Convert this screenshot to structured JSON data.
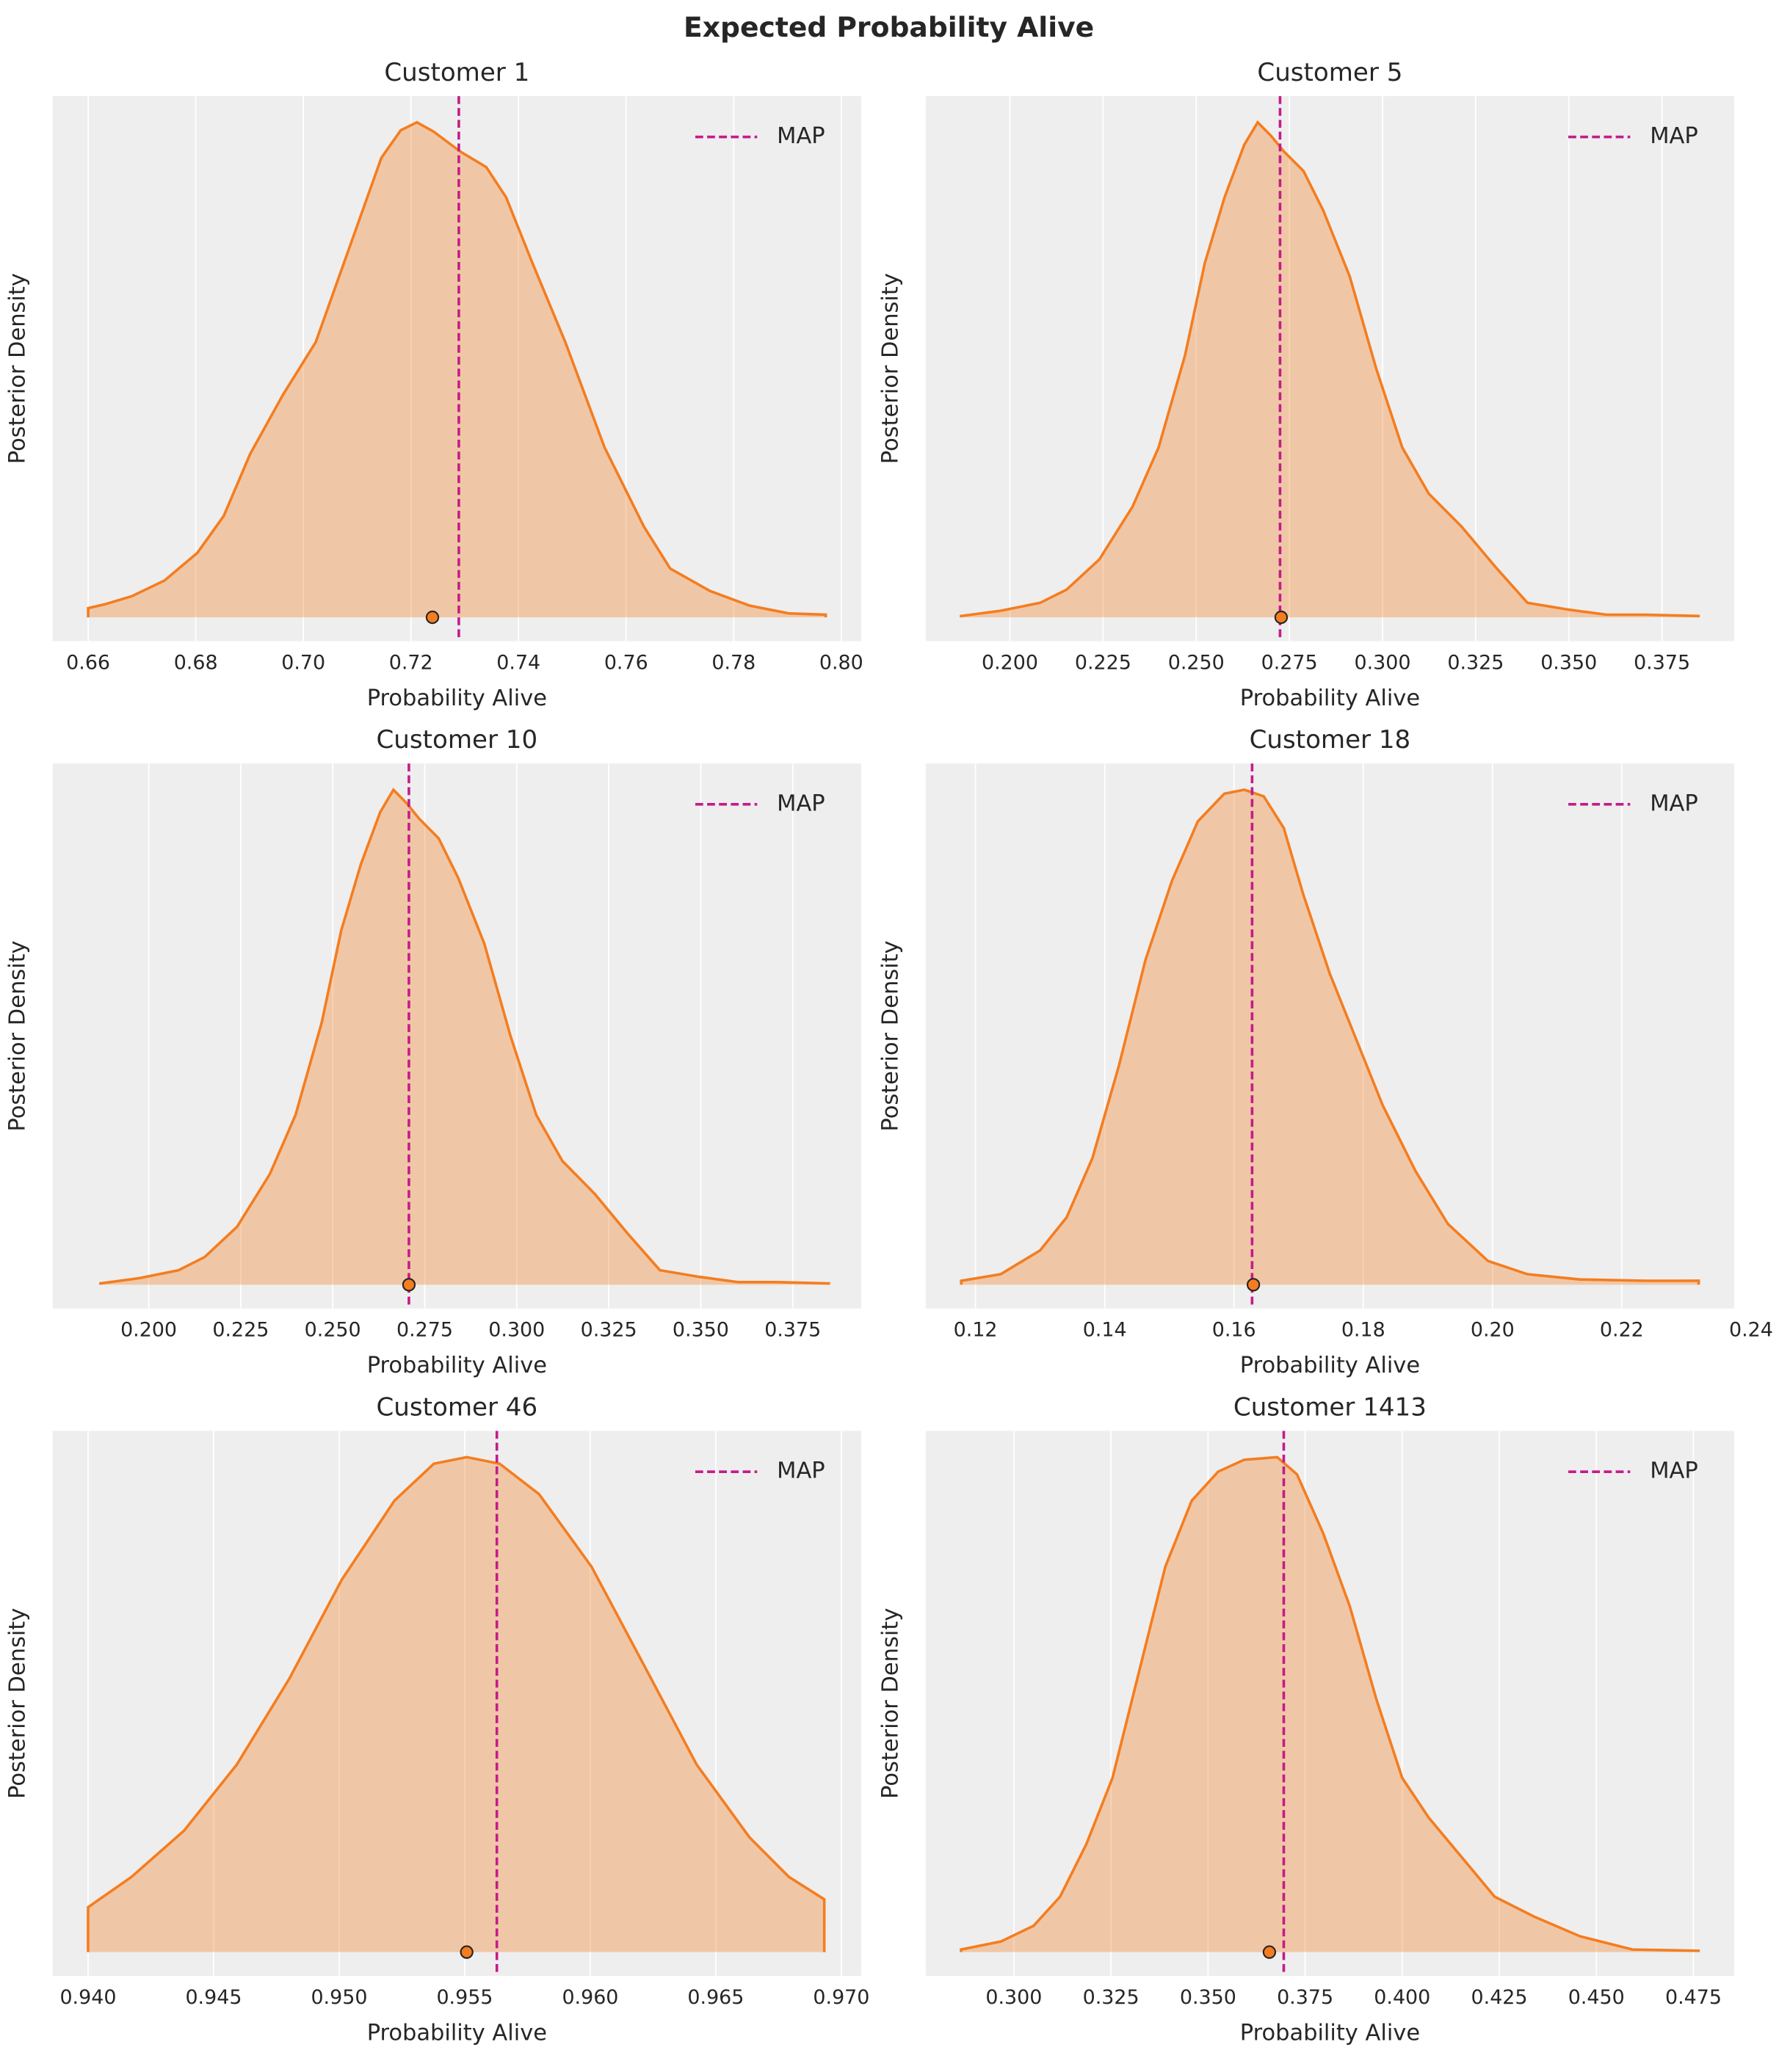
{
  "title": "Expected Probability Alive",
  "chart_data": [
    {
      "type": "density",
      "title": "Customer 1",
      "xlabel": "Probability Alive",
      "ylabel": "Posterior Density",
      "color": "#f47d20",
      "x": [
        0.66,
        0.6632,
        0.6681,
        0.6742,
        0.6803,
        0.6852,
        0.6901,
        0.6962,
        0.7023,
        0.7084,
        0.7145,
        0.7181,
        0.7211,
        0.7242,
        0.7291,
        0.734,
        0.7377,
        0.7426,
        0.7487,
        0.756,
        0.7633,
        0.7682,
        0.7756,
        0.7829,
        0.7902,
        0.7971
      ],
      "values": [
        0.0186,
        0.0266,
        0.0426,
        0.0745,
        0.1303,
        0.2048,
        0.3298,
        0.4495,
        0.5559,
        0.742,
        0.9282,
        0.984,
        1.0,
        0.9814,
        0.9415,
        0.9096,
        0.8484,
        0.7154,
        0.5559,
        0.3431,
        0.1835,
        0.0984,
        0.0532,
        0.0239,
        0.008,
        0.0053
      ],
      "map": {
        "name": "MAP",
        "value": 0.7289,
        "color": "#c51b8a"
      },
      "point": 0.724,
      "xlim": [
        0.6534,
        0.8037
      ],
      "ylim": [
        -0.048,
        1.053
      ],
      "xticks": [
        0.66,
        0.68,
        {
          "value": 0.7,
          "label": "0.70"
        },
        0.72,
        0.74,
        0.76,
        0.78,
        {
          "value": 0.8,
          "label": "0.80"
        }
      ],
      "grid": true
    },
    {
      "type": "density",
      "title": "Customer 5",
      "xlabel": "Probability Alive",
      "ylabel": "Posterior Density",
      "color": "#f47d20",
      "x": [
        0.1869,
        0.1975,
        0.2081,
        0.2152,
        0.224,
        0.2329,
        0.2399,
        0.247,
        0.2523,
        0.2576,
        0.2629,
        0.2665,
        0.27,
        0.2735,
        0.2788,
        0.2841,
        0.2912,
        0.2983,
        0.3053,
        0.3124,
        0.3212,
        0.3301,
        0.3389,
        0.3495,
        0.3601,
        0.3707,
        0.3848
      ],
      "values": [
        0.0027,
        0.0133,
        0.0293,
        0.0559,
        0.117,
        0.2234,
        0.3431,
        0.5293,
        0.7154,
        0.8484,
        0.9548,
        1.0,
        0.9734,
        0.9415,
        0.9016,
        0.8218,
        0.6888,
        0.5027,
        0.3431,
        0.25,
        0.1835,
        0.1037,
        0.0293,
        0.016,
        0.0053,
        0.0053,
        0.0027
      ],
      "map": {
        "name": "MAP",
        "value": 0.2725,
        "color": "#c51b8a"
      },
      "point": 0.2728,
      "xlim": [
        0.1774,
        0.3944
      ],
      "ylim": [
        -0.048,
        1.053
      ],
      "xticks": [
        {
          "value": 0.2,
          "label": "0.200"
        },
        0.225,
        {
          "value": 0.25,
          "label": "0.250"
        },
        0.275,
        {
          "value": 0.3,
          "label": "0.300"
        },
        0.325,
        {
          "value": 0.35,
          "label": "0.350"
        },
        0.375
      ],
      "grid": true
    },
    {
      "type": "density",
      "title": "Customer 10",
      "xlabel": "Probability Alive",
      "ylabel": "Posterior Density",
      "color": "#f47d20",
      "x": [
        0.1869,
        0.1975,
        0.2081,
        0.2152,
        0.224,
        0.2329,
        0.2399,
        0.247,
        0.2523,
        0.2576,
        0.2629,
        0.2665,
        0.27,
        0.2735,
        0.2788,
        0.2841,
        0.2912,
        0.2983,
        0.3053,
        0.3124,
        0.3212,
        0.3301,
        0.3389,
        0.3495,
        0.3601,
        0.3707,
        0.3848
      ],
      "values": [
        0.0027,
        0.0133,
        0.0293,
        0.0559,
        0.117,
        0.2234,
        0.3431,
        0.5293,
        0.7154,
        0.8484,
        0.9548,
        1.0,
        0.9734,
        0.9415,
        0.9016,
        0.8218,
        0.6888,
        0.5027,
        0.3431,
        0.25,
        0.1835,
        0.1037,
        0.0293,
        0.016,
        0.0053,
        0.0053,
        0.0027
      ],
      "map": {
        "name": "MAP",
        "value": 0.2707,
        "color": "#c51b8a"
      },
      "point": 0.2707,
      "xlim": [
        0.1739,
        0.3936
      ],
      "ylim": [
        -0.048,
        1.053
      ],
      "xticks": [
        {
          "value": 0.2,
          "label": "0.200"
        },
        0.225,
        {
          "value": 0.25,
          "label": "0.250"
        },
        0.275,
        {
          "value": 0.3,
          "label": "0.300"
        },
        0.325,
        {
          "value": 0.35,
          "label": "0.350"
        },
        0.375
      ],
      "grid": true
    },
    {
      "type": "density",
      "title": "Customer 18",
      "xlabel": "Probability Alive",
      "ylabel": "Posterior Density",
      "color": "#f47d20",
      "x": [
        0.1178,
        0.1239,
        0.13,
        0.1341,
        0.1381,
        0.1422,
        0.1463,
        0.1504,
        0.1544,
        0.1585,
        0.1616,
        0.1646,
        0.1677,
        0.1707,
        0.1748,
        0.1789,
        0.183,
        0.1881,
        0.1931,
        0.1993,
        0.2054,
        0.2135,
        0.2237,
        0.2319
      ],
      "values": [
        0.008,
        0.0213,
        0.0693,
        0.136,
        0.256,
        0.4427,
        0.656,
        0.816,
        0.936,
        0.992,
        1.0,
        0.9867,
        0.9227,
        0.7893,
        0.6293,
        0.496,
        0.3627,
        0.2293,
        0.1227,
        0.048,
        0.0213,
        0.0107,
        0.008,
        0.008
      ],
      "map": {
        "name": "MAP",
        "value": 0.1628,
        "color": "#c51b8a"
      },
      "point": 0.163,
      "xlim": [
        0.1123,
        0.2374
      ],
      "ylim": [
        -0.048,
        1.053
      ],
      "xticks": [
        0.12,
        0.14,
        0.16,
        0.18,
        {
          "value": 0.2,
          "label": "0.20"
        },
        0.22,
        0.24
      ],
      "grid": true
    },
    {
      "type": "density",
      "title": "Customer 46",
      "xlabel": "Probability Alive",
      "ylabel": "Posterior Density",
      "color": "#f47d20",
      "x": [
        0.94,
        0.94173,
        0.94382,
        0.94592,
        0.94801,
        0.9501,
        0.9522,
        0.95377,
        0.95508,
        0.95639,
        0.95796,
        0.96005,
        0.96215,
        0.96424,
        0.96634,
        0.96791,
        0.96932
      ],
      "values": [
        0.0907,
        0.152,
        0.2453,
        0.3787,
        0.552,
        0.752,
        0.912,
        0.9867,
        1.0,
        0.9867,
        0.9253,
        0.7787,
        0.5787,
        0.3787,
        0.232,
        0.152,
        0.1067
      ],
      "map": {
        "name": "MAP",
        "value": 0.95628,
        "color": "#c51b8a"
      },
      "point": 0.95508,
      "xlim": [
        0.93859,
        0.97079
      ],
      "ylim": [
        -0.048,
        1.053
      ],
      "xticks": [
        {
          "value": 0.94,
          "label": "0.940"
        },
        0.945,
        {
          "value": 0.95,
          "label": "0.950"
        },
        0.955,
        {
          "value": 0.96,
          "label": "0.960"
        },
        0.965,
        {
          "value": 0.97,
          "label": "0.970"
        }
      ],
      "grid": true
    },
    {
      "type": "density",
      "title": "Customer 1413",
      "xlabel": "Probability Alive",
      "ylabel": "Posterior Density",
      "color": "#f47d20",
      "x": [
        0.2864,
        0.2966,
        0.3051,
        0.3119,
        0.3187,
        0.3254,
        0.3322,
        0.339,
        0.3458,
        0.3526,
        0.3593,
        0.3678,
        0.3729,
        0.3797,
        0.3865,
        0.3933,
        0.4,
        0.4068,
        0.4153,
        0.4238,
        0.4339,
        0.4458,
        0.4593,
        0.4763
      ],
      "values": [
        0.0053,
        0.0213,
        0.0533,
        0.112,
        0.2187,
        0.352,
        0.5653,
        0.7787,
        0.912,
        0.9707,
        0.9947,
        1.0,
        0.9653,
        0.8453,
        0.6987,
        0.512,
        0.352,
        0.272,
        0.192,
        0.112,
        0.072,
        0.032,
        0.0053,
        0.0027
      ],
      "map": {
        "name": "MAP",
        "value": 0.3695,
        "color": "#c51b8a"
      },
      "point": 0.3658,
      "xlim": [
        0.2773,
        0.4855
      ],
      "ylim": [
        -0.048,
        1.053
      ],
      "xticks": [
        {
          "value": 0.3,
          "label": "0.300"
        },
        0.325,
        {
          "value": 0.35,
          "label": "0.350"
        },
        0.375,
        {
          "value": 0.4,
          "label": "0.400"
        },
        0.425,
        {
          "value": 0.45,
          "label": "0.450"
        },
        0.475
      ],
      "grid": true
    }
  ]
}
